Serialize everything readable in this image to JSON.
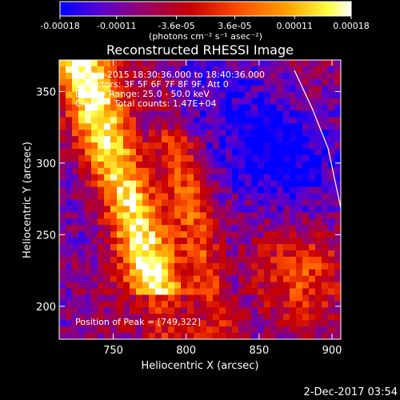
{
  "colorbar": {
    "tick_labels": [
      "-0.00018",
      "-0.00011",
      "-3.6e-05",
      "3.6e-05",
      "0.00011",
      "0.00018"
    ],
    "tick_values": [
      -0.00018,
      -0.00011,
      -3.6e-05,
      3.6e-05,
      0.00011,
      0.00018
    ],
    "range": [
      -0.00018,
      0.00018
    ],
    "unit_label": "(photons cm⁻² s⁻¹ asec⁻²)",
    "colors": [
      "#0000ff",
      "#5a00d0",
      "#9a0060",
      "#c80000",
      "#ff5000",
      "#ffa000",
      "#ffff40",
      "#ffffff"
    ]
  },
  "chart_data": {
    "type": "heatmap",
    "title": "Reconstructed RHESSI Image",
    "xlabel": "Heliocentric X (arcsec)",
    "ylabel": "Heliocentric Y (arcsec)",
    "x_ticks": [
      750,
      800,
      850,
      900
    ],
    "y_ticks": [
      200,
      250,
      300,
      350
    ],
    "xlim": [
      713,
      906
    ],
    "ylim": [
      177,
      372
    ],
    "peak": [
      749,
      322
    ],
    "annotations": {
      "time_range": "25-Jun-2015 18:30:36.000 to 18:40:36.000",
      "detectors": "Detectors: 3F 5F 6F 7F 8F 9F, Att 0",
      "energy": "Energy Range: 25.0 - 50.0 keV",
      "method": "Clean     Total counts: 1.47E+04",
      "peak_text": "Position of Peak = [749,322]"
    }
  },
  "footer": {
    "date": "2-Dec-2017 03:54"
  }
}
